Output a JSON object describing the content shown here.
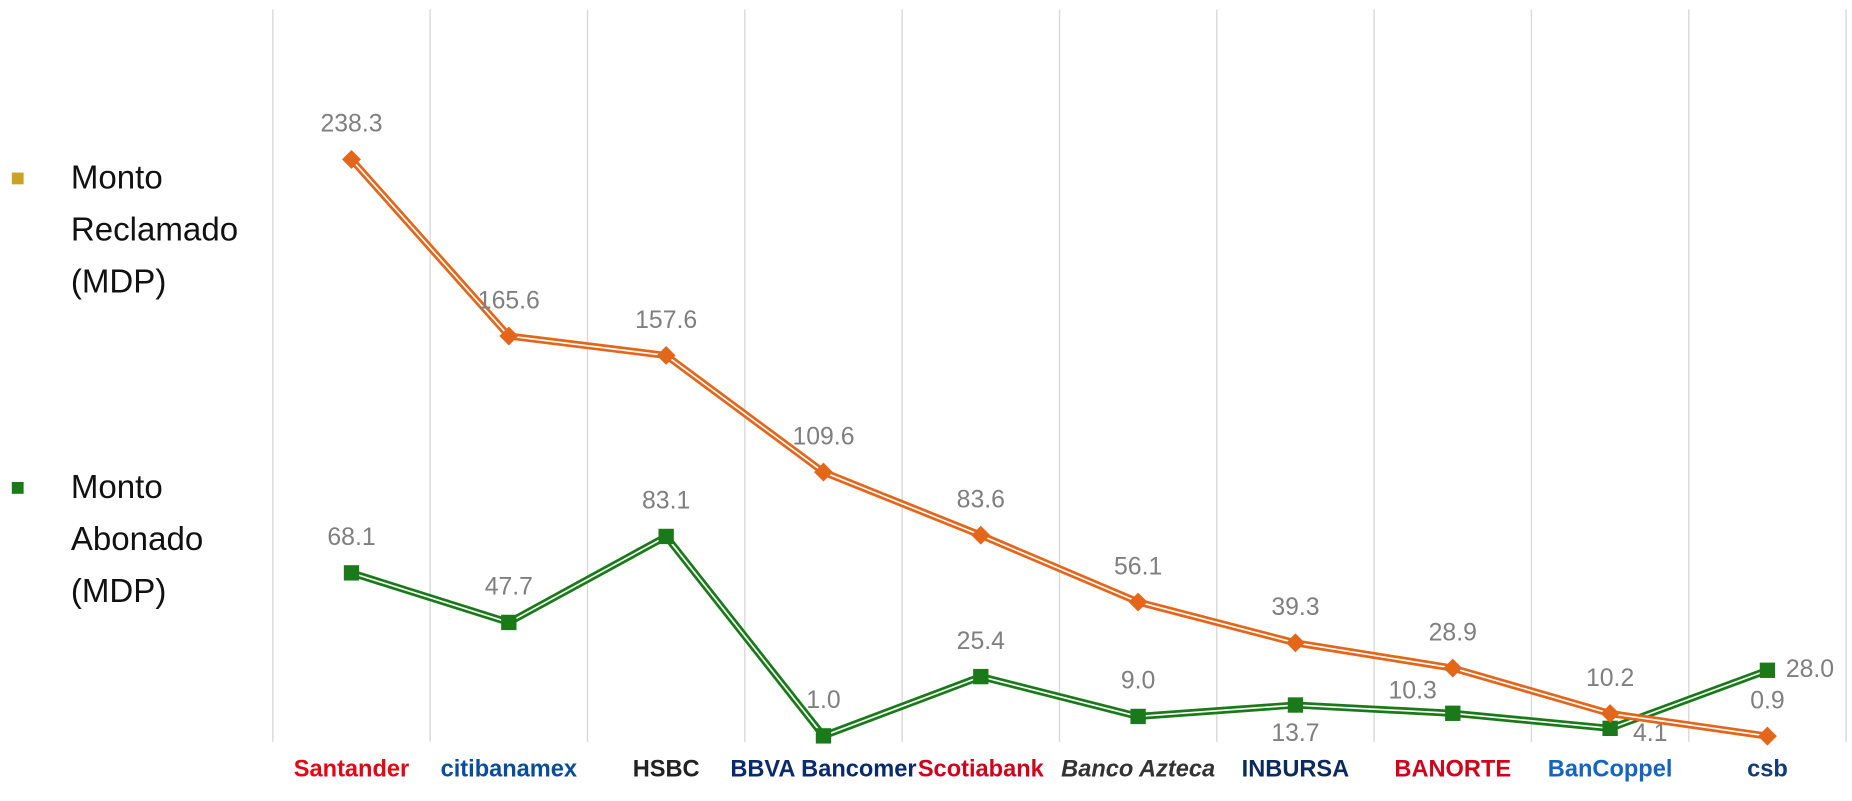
{
  "chart_data": {
    "type": "line",
    "categories": [
      "Santander",
      "citibanamex",
      "HSBC",
      "BBVA Bancomer",
      "Scotiabank",
      "Banco Azteca",
      "INBURSA",
      "BANORTE",
      "BanCoppel",
      "csb"
    ],
    "series": [
      {
        "name": "Monto Reclamado (MDP)",
        "color": "#e3661b",
        "marker": "diamond",
        "values": [
          238.3,
          165.6,
          157.6,
          109.6,
          83.6,
          56.1,
          39.3,
          28.9,
          10.2,
          0.9
        ],
        "value_labels": [
          "238.3",
          "165.6",
          "157.6",
          "109.6",
          "83.6",
          "56.1",
          "39.3",
          "28.9",
          "10.2",
          "0.9"
        ]
      },
      {
        "name": "Monto Abonado (MDP)",
        "color": "#1a7a1a",
        "marker": "square",
        "values": [
          68.1,
          47.7,
          83.1,
          1.0,
          25.4,
          9.0,
          13.7,
          10.3,
          4.1,
          28.0
        ],
        "value_labels": [
          "68.1",
          "47.7",
          "83.1",
          "1.0",
          "25.4",
          "9.0",
          "13.7",
          "10.3",
          "4.1",
          "28.0"
        ]
      }
    ],
    "ylim": [
      0,
      300
    ],
    "grid": "vertical",
    "legend": "left"
  }
}
